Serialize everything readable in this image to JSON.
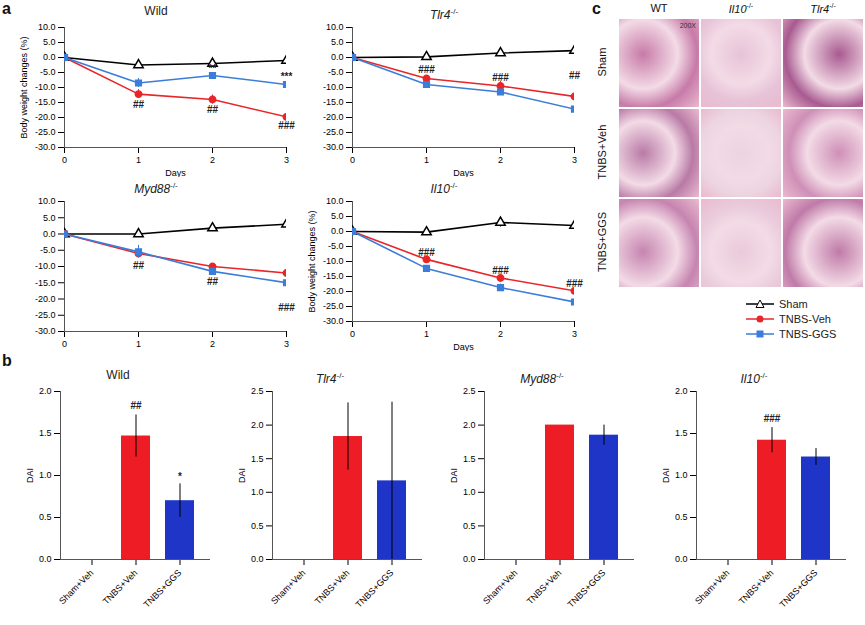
{
  "panel_labels": [
    "a",
    "b",
    "c"
  ],
  "chart_data": [
    {
      "type": "line",
      "title": "Wild",
      "xlabel": "Days",
      "ylabel": "Body weight changes (%)",
      "x": [
        0,
        1,
        2,
        3
      ],
      "xlim": [
        0,
        3
      ],
      "xticks": [
        0,
        1,
        2,
        3
      ],
      "ylim": [
        -30,
        10
      ],
      "yticks": [
        {
          "value": 10,
          "label": "10.0"
        },
        {
          "value": 5,
          "label": "5.0"
        },
        {
          "value": 0,
          "label": "0.0"
        },
        {
          "value": -5,
          "label": "-5.0"
        },
        {
          "value": -10,
          "label": "-10.0"
        },
        {
          "value": -15,
          "label": "-15.0"
        },
        {
          "value": -20,
          "label": "-20.0"
        },
        {
          "value": -25,
          "label": "-25.0"
        },
        {
          "value": -30,
          "label": "-30.0"
        }
      ],
      "series": [
        {
          "name": "Sham",
          "color": "#000000",
          "marker": "triangle",
          "values": [
            0,
            -2.5,
            -2,
            -1
          ],
          "errors": [
            0,
            0.5,
            1,
            1.2
          ]
        },
        {
          "name": "TNBS-Veh",
          "color": "#e8262a",
          "marker": "circle",
          "values": [
            0,
            -12.2,
            -14,
            -19.8
          ],
          "errors": [
            0,
            1.5,
            1.5,
            0.8
          ]
        },
        {
          "name": "TNBS-GGS",
          "color": "#3b7dd8",
          "marker": "square",
          "values": [
            0,
            -8.5,
            -6,
            -9
          ],
          "errors": [
            0,
            1.5,
            0.8,
            1.5
          ]
        }
      ],
      "annotations": [
        {
          "text": "##",
          "x": 1,
          "y": -15.8
        },
        {
          "text": "##",
          "x": 2,
          "y": -17.3
        },
        {
          "text": "###",
          "x": 3,
          "y": -22.6
        },
        {
          "text": "**",
          "x": 2,
          "y": -3.8
        },
        {
          "text": "***",
          "x": 3,
          "y": -6.3
        }
      ]
    },
    {
      "type": "line",
      "title": "Tlr4-/-",
      "xlabel": "Days",
      "x": [
        0,
        1,
        2,
        3
      ],
      "xlim": [
        0,
        3
      ],
      "xticks": [
        0,
        1,
        2,
        3
      ],
      "ylim": [
        -30,
        10
      ],
      "yticks": [
        {
          "value": 10,
          "label": "10.0"
        },
        {
          "value": 5,
          "label": "5.0"
        },
        {
          "value": 0,
          "label": "0.0"
        },
        {
          "value": -5,
          "label": "-5.0"
        },
        {
          "value": -10,
          "label": "-10.0"
        },
        {
          "value": -15,
          "label": "-15.0"
        },
        {
          "value": -20,
          "label": "-20.0"
        },
        {
          "value": -25,
          "label": "-25.0"
        },
        {
          "value": -30,
          "label": "-30.0"
        }
      ],
      "series": [
        {
          "name": "Sham",
          "color": "#000000",
          "marker": "triangle",
          "values": [
            0,
            0.2,
            1.5,
            2.3
          ],
          "errors": [
            0,
            0.3,
            0.4,
            0.4
          ]
        },
        {
          "name": "TNBS-Veh",
          "color": "#e8262a",
          "marker": "circle",
          "values": [
            0,
            -7,
            -9.5,
            -13
          ],
          "errors": [
            0,
            0.8,
            1.5,
            4
          ]
        },
        {
          "name": "TNBS-GGS",
          "color": "#3b7dd8",
          "marker": "square",
          "values": [
            0,
            -9,
            -11.5,
            -17.2
          ],
          "errors": [
            0,
            0.5,
            0.8,
            2
          ]
        }
      ],
      "annotations": [
        {
          "text": "###",
          "x": 1,
          "y": -4.2
        },
        {
          "text": "###",
          "x": 2,
          "y": -6.6
        },
        {
          "text": "##",
          "x": 3,
          "y": -6.2
        }
      ]
    },
    {
      "type": "line",
      "title": "Myd88-/-",
      "x": [
        0,
        1,
        2,
        3
      ],
      "xlim": [
        0,
        3
      ],
      "xticks": [
        0,
        1,
        2,
        3
      ],
      "ylim": [
        -30,
        10
      ],
      "yticks": [
        {
          "value": 10,
          "label": "10.0"
        },
        {
          "value": 5,
          "label": "5.0"
        },
        {
          "value": 0,
          "label": "0.0"
        },
        {
          "value": -5,
          "label": "-5.0"
        },
        {
          "value": -10,
          "label": "-10.0"
        },
        {
          "value": -15,
          "label": "-15.0"
        },
        {
          "value": -20,
          "label": "-20.0"
        },
        {
          "value": -25,
          "label": "-25.0"
        },
        {
          "value": -30,
          "label": "-30.0"
        }
      ],
      "series": [
        {
          "name": "Sham",
          "color": "#000000",
          "marker": "triangle",
          "values": [
            0,
            0,
            1.8,
            3
          ],
          "errors": [
            0,
            0.3,
            0.5,
            0.5
          ]
        },
        {
          "name": "TNBS-Veh",
          "color": "#e8262a",
          "marker": "circle",
          "values": [
            0,
            -6,
            -10,
            -12
          ],
          "errors": [
            0,
            1,
            0.8,
            2
          ]
        },
        {
          "name": "TNBS-GGS",
          "color": "#3b7dd8",
          "marker": "square",
          "values": [
            0,
            -5.5,
            -11.5,
            -15
          ],
          "errors": [
            0,
            2,
            0.5,
            6
          ]
        }
      ],
      "annotations": [
        {
          "text": "##",
          "x": 1,
          "y": -9.8
        },
        {
          "text": "##",
          "x": 2,
          "y": -14.6
        },
        {
          "text": "###",
          "x": 3,
          "y": -22.6
        }
      ]
    },
    {
      "type": "line",
      "title": "Il10-/-",
      "xlabel": "Days",
      "ylabel": "Body weight changes (%)",
      "legend": "right",
      "x": [
        0,
        1,
        2,
        3
      ],
      "xlim": [
        0,
        3
      ],
      "xticks": [
        0,
        1,
        2,
        3
      ],
      "ylim": [
        -30,
        10
      ],
      "yticks": [
        {
          "value": 10,
          "label": "10.0"
        },
        {
          "value": 5,
          "label": "5.0"
        },
        {
          "value": 0,
          "label": "0.0"
        },
        {
          "value": -5,
          "label": "-5.0"
        },
        {
          "value": -10,
          "label": "-10.0"
        },
        {
          "value": -15,
          "label": "-15.0"
        },
        {
          "value": -20,
          "label": "-20.0"
        },
        {
          "value": -25,
          "label": "-25.0"
        },
        {
          "value": -30,
          "label": "-30.0"
        }
      ],
      "series": [
        {
          "name": "Sham",
          "color": "#000000",
          "marker": "triangle",
          "values": [
            0,
            -0.2,
            3,
            2
          ],
          "errors": [
            0,
            0.3,
            1.5,
            0.8
          ]
        },
        {
          "name": "TNBS-Veh",
          "color": "#e8262a",
          "marker": "circle",
          "values": [
            0,
            -9.3,
            -15.5,
            -19.8
          ],
          "errors": [
            0,
            0.8,
            1.2,
            1
          ]
        },
        {
          "name": "TNBS-GGS",
          "color": "#3b7dd8",
          "marker": "square",
          "values": [
            0,
            -12.3,
            -18.7,
            -23.5
          ],
          "errors": [
            0,
            0.5,
            1.2,
            3
          ]
        }
      ],
      "annotations": [
        {
          "text": "###",
          "x": 1,
          "y": -7
        },
        {
          "text": "###",
          "x": 2,
          "y": -13
        },
        {
          "text": "###",
          "x": 3,
          "y": -17.5
        }
      ]
    },
    {
      "type": "bar",
      "title": "Wild",
      "ylabel": "DAI",
      "categories": [
        "Sham+Veh",
        "TNBS+Veh",
        "TNBS+GGS"
      ],
      "values": [
        0,
        1.47,
        0.7
      ],
      "errors": [
        0,
        0.25,
        0.2
      ],
      "colors": [
        "#888888",
        "#ee1c25",
        "#1f35c8"
      ],
      "ylim": [
        0,
        2
      ],
      "yticks": [
        {
          "value": 0,
          "label": "0.0"
        },
        {
          "value": 0.5,
          "label": "0.5"
        },
        {
          "value": 1,
          "label": "1.0"
        },
        {
          "value": 1.5,
          "label": "1.5"
        },
        {
          "value": 2,
          "label": "2.0"
        }
      ],
      "annotations": [
        {
          "text": "##",
          "x": "TNBS+Veh",
          "y": 1.83
        },
        {
          "text": "*",
          "x": "TNBS+GGS",
          "y": 0.98
        }
      ]
    },
    {
      "type": "bar",
      "title": "Tlr4-/-",
      "ylabel": "DAI",
      "categories": [
        "Sham+Veh",
        "TNBS+Veh",
        "TNBS+GGS"
      ],
      "values": [
        0,
        1.83,
        1.17
      ],
      "errors": [
        0,
        0.5,
        1.17
      ],
      "colors": [
        "#888888",
        "#ee1c25",
        "#1f35c8"
      ],
      "ylim": [
        0,
        2.5
      ],
      "yticks": [
        {
          "value": 0,
          "label": "0.0"
        },
        {
          "value": 0.5,
          "label": "0.5"
        },
        {
          "value": 1,
          "label": "1.0"
        },
        {
          "value": 1.5,
          "label": "1.5"
        },
        {
          "value": 2,
          "label": "2.0"
        },
        {
          "value": 2.5,
          "label": "2.5"
        }
      ],
      "annotations": []
    },
    {
      "type": "bar",
      "title": "Myd88-/-",
      "ylabel": "DAI",
      "categories": [
        "Sham+Veh",
        "TNBS+Veh",
        "TNBS+GGS"
      ],
      "values": [
        0,
        2,
        1.85
      ],
      "errors": [
        0,
        0,
        0.15
      ],
      "colors": [
        "#888888",
        "#ee1c25",
        "#1f35c8"
      ],
      "ylim": [
        0,
        2.5
      ],
      "yticks": [
        {
          "value": 0,
          "label": "0.0"
        },
        {
          "value": 0.5,
          "label": "0.5"
        },
        {
          "value": 1,
          "label": "1.0"
        },
        {
          "value": 1.5,
          "label": "1.5"
        },
        {
          "value": 2,
          "label": "2.0"
        },
        {
          "value": 2.5,
          "label": "2.5"
        }
      ],
      "annotations": []
    },
    {
      "type": "bar",
      "title": "Il10-/-",
      "ylabel": "DAI",
      "categories": [
        "Sham+Veh",
        "TNBS+Veh",
        "TNBS+GGS"
      ],
      "values": [
        0,
        1.42,
        1.22
      ],
      "errors": [
        0,
        0.15,
        0.1
      ],
      "colors": [
        "#888888",
        "#ee1c25",
        "#1f35c8"
      ],
      "ylim": [
        0,
        2
      ],
      "yticks": [
        {
          "value": 0,
          "label": "0.0"
        },
        {
          "value": 0.5,
          "label": "0.5"
        },
        {
          "value": 1,
          "label": "1.0"
        },
        {
          "value": 1.5,
          "label": "1.5"
        },
        {
          "value": 2,
          "label": "2.0"
        }
      ],
      "annotations": [
        {
          "text": "###",
          "x": "TNBS+Veh",
          "y": 1.68
        }
      ]
    }
  ],
  "histology": {
    "columns": [
      "WT",
      "Il10-/-",
      "Tlr4-/-"
    ],
    "rows": [
      "Sham",
      "TNBS+Veh",
      "TNBS+GGS"
    ],
    "magnification": "200X"
  }
}
